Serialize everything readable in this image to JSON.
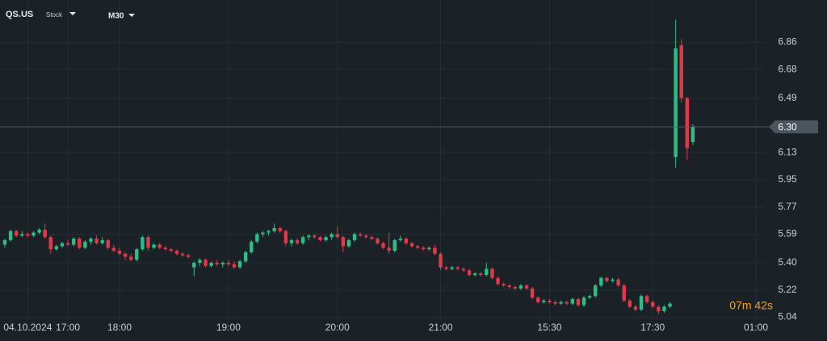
{
  "chart_data": {
    "type": "candlestick",
    "symbol": "QS.US",
    "instrument_type": "Stock",
    "timeframe": "M30",
    "timer": "07m 42s",
    "up_color": "#2ebd85",
    "down_color": "#e0394a",
    "grid": true,
    "ylim": [
      5.0,
      7.14
    ],
    "yticks": [
      5.04,
      5.22,
      {
        "value": 5.4,
        "label": "5.40"
      },
      5.59,
      5.77,
      5.95,
      6.13,
      {
        "value": 6.3,
        "label": "6.30"
      },
      6.49,
      6.68,
      6.86
    ],
    "last_price": {
      "value": 6.3,
      "label": "6.30"
    },
    "categories": [
      null,
      null,
      null,
      null,
      "04.10.2024",
      null,
      null,
      null,
      null,
      null,
      null,
      "17:00",
      null,
      null,
      null,
      null,
      null,
      null,
      null,
      null,
      "18:00",
      null,
      null,
      null,
      null,
      null,
      null,
      null,
      null,
      null,
      null,
      null,
      null,
      null,
      null,
      null,
      null,
      null,
      null,
      "19:00",
      null,
      null,
      null,
      null,
      null,
      null,
      null,
      null,
      null,
      null,
      null,
      null,
      null,
      null,
      null,
      null,
      null,
      null,
      "20:00",
      null,
      null,
      null,
      null,
      null,
      null,
      null,
      null,
      null,
      null,
      null,
      null,
      null,
      null,
      null,
      null,
      null,
      "21:00",
      null,
      null,
      null,
      null,
      null,
      null,
      null,
      null,
      null,
      null,
      null,
      null,
      null,
      null,
      null,
      null,
      null,
      null,
      "15:30",
      null,
      null,
      null,
      null,
      null,
      null,
      null,
      null,
      null,
      null,
      null,
      null,
      null,
      null,
      null,
      null,
      null,
      "17:30",
      null,
      null,
      null,
      null,
      null,
      null,
      null,
      null,
      null,
      null,
      null,
      null,
      null,
      null,
      null,
      null,
      null,
      "01:00"
    ],
    "open": [
      5.52,
      5.55,
      5.61,
      5.58,
      5.59,
      5.58,
      5.6,
      5.62,
      5.57,
      5.49,
      5.51,
      5.53,
      5.52,
      5.56,
      5.5,
      5.54,
      5.56,
      5.53,
      5.55,
      5.5,
      5.48,
      5.46,
      5.44,
      5.42,
      5.49,
      5.57,
      5.5,
      5.52,
      5.5,
      5.49,
      5.48,
      5.46,
      5.45,
      5.37,
      5.4,
      5.42,
      5.38,
      5.4,
      5.39,
      5.4,
      5.39,
      5.37,
      5.41,
      5.47,
      5.54,
      5.59,
      5.6,
      5.61,
      5.63,
      5.61,
      5.53,
      5.55,
      5.53,
      5.57,
      5.58,
      5.57,
      5.55,
      5.57,
      5.59,
      5.57,
      5.51,
      5.55,
      5.59,
      5.58,
      5.57,
      5.56,
      5.53,
      5.5,
      5.48,
      5.55,
      5.56,
      5.53,
      5.51,
      5.5,
      5.49,
      5.5,
      5.46,
      5.37,
      5.36,
      5.37,
      5.36,
      5.35,
      5.32,
      5.33,
      5.32,
      5.36,
      5.3,
      5.26,
      5.25,
      5.24,
      5.23,
      5.25,
      5.23,
      5.17,
      5.14,
      5.15,
      5.14,
      5.13,
      5.14,
      5.13,
      5.16,
      5.12,
      5.17,
      5.18,
      5.25,
      5.3,
      5.28,
      5.29,
      5.25,
      5.15,
      5.11,
      5.09,
      5.18,
      5.14,
      5.11,
      5.08,
      5.11,
      6.1,
      6.84,
      6.49,
      6.2,
      null,
      null,
      null,
      null,
      null,
      null,
      null,
      null,
      null,
      null,
      null
    ],
    "high": [
      5.56,
      5.62,
      5.62,
      5.61,
      5.6,
      5.61,
      5.63,
      5.66,
      5.58,
      5.52,
      5.54,
      5.55,
      5.57,
      5.57,
      5.55,
      5.57,
      5.58,
      5.57,
      5.56,
      5.52,
      5.5,
      5.47,
      5.46,
      5.5,
      5.58,
      5.58,
      5.53,
      5.53,
      5.51,
      5.5,
      5.49,
      5.47,
      5.46,
      5.41,
      5.43,
      5.43,
      5.41,
      5.42,
      5.41,
      5.42,
      5.41,
      5.42,
      5.48,
      5.55,
      5.6,
      5.61,
      5.62,
      5.66,
      5.64,
      5.62,
      5.56,
      5.56,
      5.58,
      5.59,
      5.59,
      5.58,
      5.58,
      5.6,
      5.64,
      5.58,
      5.56,
      5.6,
      5.6,
      5.59,
      5.58,
      5.57,
      5.54,
      5.6,
      5.56,
      5.58,
      5.57,
      5.54,
      5.52,
      5.51,
      5.51,
      5.52,
      5.47,
      5.38,
      5.38,
      5.38,
      5.37,
      5.36,
      5.34,
      5.34,
      5.4,
      5.37,
      5.31,
      5.27,
      5.26,
      5.25,
      5.26,
      5.26,
      5.24,
      5.18,
      5.16,
      5.16,
      5.15,
      5.15,
      5.15,
      5.17,
      5.17,
      5.18,
      5.19,
      5.26,
      5.31,
      5.31,
      5.3,
      5.3,
      5.26,
      5.16,
      5.12,
      5.19,
      5.19,
      5.15,
      5.12,
      5.12,
      5.14,
      7.01,
      6.88,
      6.5,
      6.32,
      null,
      null,
      null,
      null,
      null,
      null,
      null,
      null,
      null,
      null,
      null
    ],
    "low": [
      5.5,
      5.54,
      5.57,
      5.57,
      5.57,
      5.57,
      5.59,
      5.56,
      5.46,
      5.48,
      5.5,
      5.51,
      5.51,
      5.49,
      5.49,
      5.52,
      5.52,
      5.52,
      5.49,
      5.47,
      5.45,
      5.42,
      5.41,
      5.41,
      5.48,
      5.48,
      5.49,
      5.49,
      5.48,
      5.47,
      5.45,
      5.44,
      5.43,
      5.31,
      5.38,
      5.37,
      5.37,
      5.38,
      5.37,
      5.38,
      5.36,
      5.36,
      5.4,
      5.46,
      5.53,
      5.57,
      5.58,
      5.6,
      5.6,
      5.51,
      5.51,
      5.52,
      5.52,
      5.55,
      5.56,
      5.54,
      5.54,
      5.55,
      5.56,
      5.47,
      5.5,
      5.54,
      5.57,
      5.56,
      5.55,
      5.52,
      5.49,
      5.46,
      5.47,
      5.54,
      5.52,
      5.5,
      5.49,
      5.48,
      5.48,
      5.45,
      5.35,
      5.35,
      5.35,
      5.35,
      5.34,
      5.31,
      5.31,
      5.31,
      5.31,
      5.29,
      5.25,
      5.24,
      5.23,
      5.22,
      5.22,
      5.22,
      5.16,
      5.13,
      5.13,
      5.13,
      5.12,
      5.12,
      5.12,
      5.12,
      5.11,
      5.11,
      5.16,
      5.17,
      5.24,
      5.27,
      5.27,
      5.24,
      5.14,
      5.1,
      5.08,
      5.08,
      5.13,
      5.1,
      5.06,
      5.07,
      5.1,
      6.03,
      6.46,
      6.08,
      6.18,
      null,
      null,
      null,
      null,
      null,
      null,
      null,
      null,
      null,
      null,
      null
    ],
    "close": [
      5.55,
      5.61,
      5.58,
      5.59,
      5.58,
      5.6,
      5.62,
      5.57,
      5.49,
      5.51,
      5.53,
      5.52,
      5.56,
      5.5,
      5.54,
      5.56,
      5.53,
      5.55,
      5.5,
      5.48,
      5.46,
      5.44,
      5.42,
      5.49,
      5.57,
      5.5,
      5.52,
      5.5,
      5.49,
      5.48,
      5.46,
      5.45,
      5.44,
      5.4,
      5.42,
      5.38,
      5.4,
      5.39,
      5.4,
      5.39,
      5.37,
      5.41,
      5.47,
      5.54,
      5.59,
      5.6,
      5.61,
      5.63,
      5.61,
      5.53,
      5.55,
      5.53,
      5.57,
      5.58,
      5.57,
      5.55,
      5.57,
      5.59,
      5.57,
      5.51,
      5.55,
      5.59,
      5.58,
      5.57,
      5.56,
      5.53,
      5.5,
      5.48,
      5.55,
      5.56,
      5.53,
      5.51,
      5.5,
      5.49,
      5.5,
      5.46,
      5.37,
      5.36,
      5.37,
      5.36,
      5.35,
      5.32,
      5.33,
      5.32,
      5.36,
      5.3,
      5.26,
      5.25,
      5.24,
      5.23,
      5.25,
      5.23,
      5.17,
      5.14,
      5.15,
      5.14,
      5.13,
      5.14,
      5.13,
      5.16,
      5.12,
      5.17,
      5.18,
      5.25,
      5.3,
      5.28,
      5.29,
      5.25,
      5.15,
      5.11,
      5.09,
      5.18,
      5.14,
      5.11,
      5.08,
      5.11,
      5.13,
      6.82,
      6.49,
      6.16,
      6.3,
      null,
      null,
      null,
      null,
      null,
      null,
      null,
      null,
      null,
      null,
      null
    ]
  }
}
